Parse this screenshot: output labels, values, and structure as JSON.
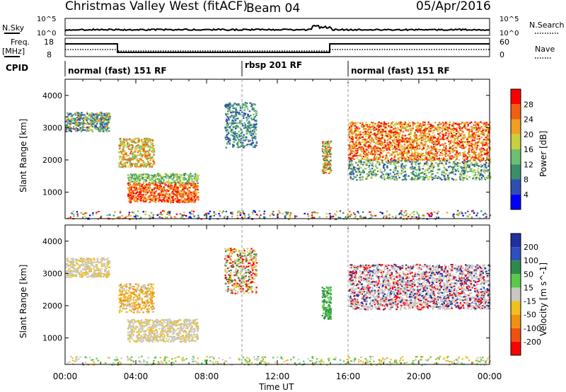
{
  "header": {
    "title": "Christmas Valley West (fitACF)",
    "beam": "Beam 04",
    "date": "05/Apr/2016"
  },
  "top_panels": {
    "nsky_label": "N.Sky",
    "nsearch_label": "N.Search",
    "noise_ticks": [
      "10^5",
      "10^0"
    ],
    "freq_label_1": "Freq.",
    "freq_label_2": "[MHz]",
    "freq_ticks": [
      "18",
      "8"
    ],
    "nave_label": "Nave",
    "nave_ticks": [
      "60",
      "0"
    ],
    "cpid_label": "CPID",
    "cpid_segments": [
      "normal (fast) 151 RF",
      "rbsp 201 RF",
      "normal (fast) 151 RF"
    ]
  },
  "chart_data": [
    {
      "type": "heatmap",
      "name_shown": "Power",
      "ylabel": "Slant Range [km]",
      "xlabel": "Time UT",
      "x_ticks": [
        "00:00",
        "04:00",
        "08:00",
        "12:00",
        "16:00",
        "20:00",
        "00:00"
      ],
      "xlim_hours": [
        0,
        24
      ],
      "y_ticks": [
        1000,
        2000,
        3000,
        4000
      ],
      "ylim_km": [
        180,
        4500
      ],
      "colorbar_label": "Power [dB]",
      "colorbar_ticks": [
        4,
        8,
        12,
        16,
        20,
        24,
        28
      ],
      "colorbar_range": [
        0,
        32
      ],
      "colors": [
        "#0000ff",
        "#2f4fb0",
        "#3a8f6a",
        "#6cc070",
        "#c8d040",
        "#f0a020",
        "#f06010",
        "#ff0000"
      ],
      "regions": [
        {
          "t": [
            0.0,
            2.5
          ],
          "r": [
            2800,
            3500
          ],
          "level": "low-mid"
        },
        {
          "t": [
            3.0,
            5.0
          ],
          "r": [
            1800,
            2700
          ],
          "level": "mid-high"
        },
        {
          "t": [
            4.0,
            7.5
          ],
          "r": [
            700,
            1600
          ],
          "level": "high"
        },
        {
          "t": [
            9.0,
            10.5
          ],
          "r": [
            2400,
            3800
          ],
          "level": "low"
        },
        {
          "t": [
            16.0,
            24.0
          ],
          "r": [
            1500,
            3300
          ],
          "level": "high"
        }
      ]
    },
    {
      "type": "heatmap",
      "name_shown": "Velocity",
      "ylabel": "Slant Range [km]",
      "xlabel": "Time UT",
      "x_ticks": [
        "00:00",
        "04:00",
        "08:00",
        "12:00",
        "16:00",
        "20:00",
        "00:00"
      ],
      "y_ticks": [
        1000,
        2000,
        3000,
        4000
      ],
      "colorbar_label": "Velocity [m s^-1]",
      "colorbar_ticks": [
        200,
        100,
        50,
        15,
        -15,
        -50,
        -100,
        -200
      ],
      "colors": [
        "#2030a0",
        "#3050c0",
        "#2e8a4a",
        "#5cc84c",
        "#c8c8c0",
        "#f0c020",
        "#f09010",
        "#f05010",
        "#ff0000"
      ]
    }
  ],
  "cpid_boundaries_hours": [
    10.0,
    16.0
  ]
}
